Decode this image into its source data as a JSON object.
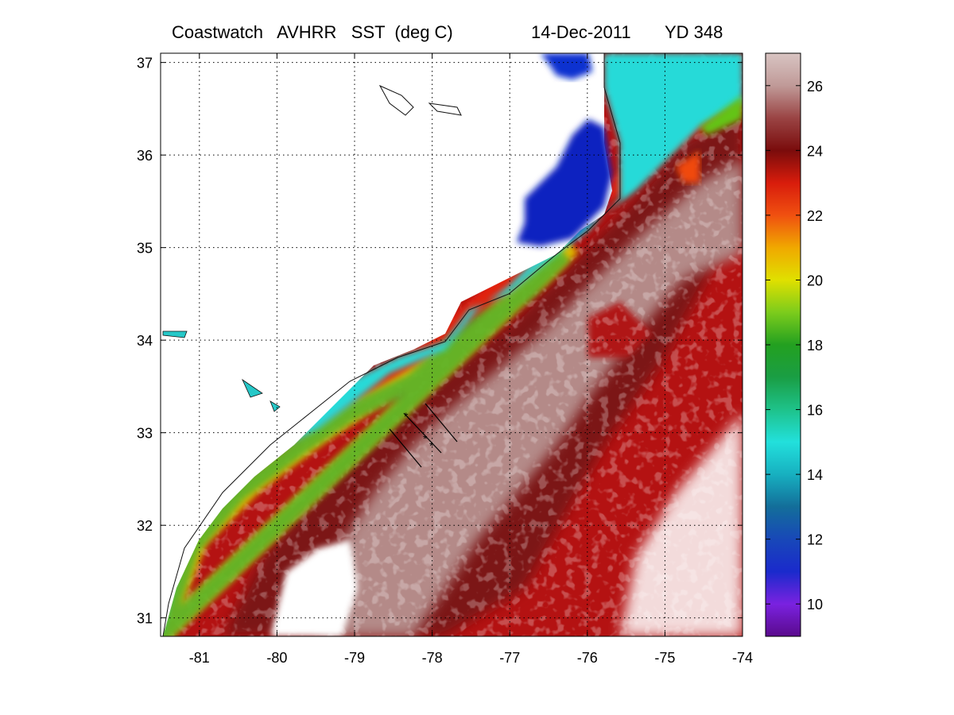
{
  "title": {
    "product": "Coastwatch   AVHRR   SST  (deg C)",
    "date": "14-Dec-2011",
    "yearday": "YD 348"
  },
  "map": {
    "lon_range": [
      -81.5,
      -74
    ],
    "lat_range": [
      30.8,
      37.1
    ],
    "lon_ticks": [
      "-81",
      "-80",
      "-79",
      "-78",
      "-77",
      "-76",
      "-75",
      "-74"
    ],
    "lat_ticks": [
      "31",
      "32",
      "33",
      "34",
      "35",
      "36",
      "37"
    ],
    "grid": "dotted",
    "land_color": "#ffffff",
    "no_data_color": "#ffffff"
  },
  "colorbar": {
    "range": [
      9,
      27
    ],
    "ticks": [
      "10",
      "12",
      "14",
      "16",
      "18",
      "20",
      "22",
      "24",
      "26"
    ],
    "stops": [
      {
        "value": 9,
        "color": "#5a0a8c"
      },
      {
        "value": 10,
        "color": "#7a22e0"
      },
      {
        "value": 11,
        "color": "#1a2acc"
      },
      {
        "value": 12,
        "color": "#1848b8"
      },
      {
        "value": 13,
        "color": "#136e9a"
      },
      {
        "value": 14,
        "color": "#17b0c0"
      },
      {
        "value": 15,
        "color": "#22e0dc"
      },
      {
        "value": 16,
        "color": "#1ec28a"
      },
      {
        "value": 17,
        "color": "#1a9e44"
      },
      {
        "value": 18,
        "color": "#23a020"
      },
      {
        "value": 19,
        "color": "#7ccc1c"
      },
      {
        "value": 20,
        "color": "#e0e000"
      },
      {
        "value": 21,
        "color": "#f0a800"
      },
      {
        "value": 22,
        "color": "#f05010"
      },
      {
        "value": 23,
        "color": "#d81c0c"
      },
      {
        "value": 24,
        "color": "#7a0c0c"
      },
      {
        "value": 25,
        "color": "#9a4444"
      },
      {
        "value": 26,
        "color": "#c09a98"
      },
      {
        "value": 27,
        "color": "#d8c4c2"
      }
    ]
  }
}
